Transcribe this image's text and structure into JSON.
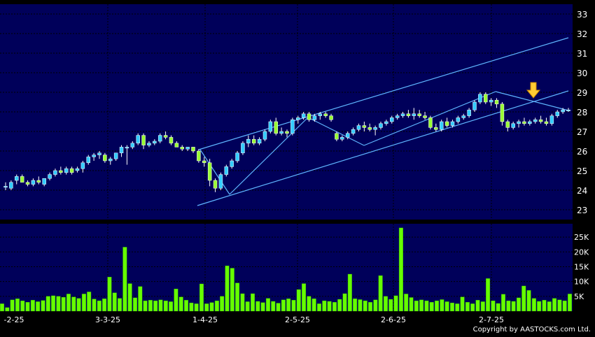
{
  "chart_data": [
    {
      "type": "candlestick",
      "yticks": [
        23,
        24,
        25,
        26,
        27,
        28,
        29,
        30,
        31,
        32,
        33
      ],
      "ylim": [
        22.5,
        33.5
      ],
      "ohlc": [
        [
          24.2,
          24.4,
          24.0,
          24.2
        ],
        [
          24.1,
          24.5,
          24.0,
          24.4
        ],
        [
          24.5,
          24.8,
          24.3,
          24.7
        ],
        [
          24.7,
          24.8,
          24.4,
          24.4
        ],
        [
          24.4,
          24.5,
          24.2,
          24.3
        ],
        [
          24.3,
          24.6,
          24.2,
          24.5
        ],
        [
          24.5,
          24.7,
          24.3,
          24.4
        ],
        [
          24.3,
          24.6,
          24.2,
          24.6
        ],
        [
          24.6,
          24.9,
          24.5,
          24.8
        ],
        [
          24.8,
          25.1,
          24.7,
          25.0
        ],
        [
          25.0,
          25.2,
          24.8,
          24.9
        ],
        [
          24.9,
          25.2,
          24.8,
          25.1
        ],
        [
          25.1,
          25.2,
          24.8,
          24.9
        ],
        [
          25.0,
          25.2,
          24.9,
          25.1
        ],
        [
          25.1,
          25.5,
          24.9,
          25.4
        ],
        [
          25.4,
          25.8,
          25.3,
          25.7
        ],
        [
          25.7,
          25.9,
          25.5,
          25.8
        ],
        [
          25.8,
          26.0,
          25.6,
          25.9
        ],
        [
          25.8,
          25.9,
          25.4,
          25.5
        ],
        [
          25.5,
          25.7,
          25.3,
          25.6
        ],
        [
          25.6,
          25.9,
          25.5,
          25.9
        ],
        [
          25.9,
          26.3,
          25.7,
          26.2
        ],
        [
          26.2,
          26.3,
          25.3,
          26.2
        ],
        [
          26.2,
          26.5,
          26.1,
          26.4
        ],
        [
          26.4,
          26.9,
          26.3,
          26.8
        ],
        [
          26.8,
          26.9,
          26.1,
          26.3
        ],
        [
          26.3,
          26.5,
          26.2,
          26.4
        ],
        [
          26.4,
          26.6,
          26.3,
          26.5
        ],
        [
          26.5,
          26.9,
          26.4,
          26.8
        ],
        [
          26.8,
          27.0,
          26.6,
          26.7
        ],
        [
          26.7,
          26.8,
          26.3,
          26.4
        ],
        [
          26.4,
          26.5,
          26.2,
          26.2
        ],
        [
          26.2,
          26.3,
          26.0,
          26.1
        ],
        [
          26.1,
          26.2,
          26.0,
          26.2
        ],
        [
          26.2,
          26.2,
          25.9,
          26.0
        ],
        [
          26.0,
          26.1,
          25.4,
          25.5
        ],
        [
          25.5,
          25.7,
          25.2,
          25.4
        ],
        [
          25.4,
          25.6,
          24.2,
          24.5
        ],
        [
          24.5,
          24.6,
          23.9,
          24.1
        ],
        [
          24.1,
          24.9,
          24.0,
          24.8
        ],
        [
          24.8,
          25.3,
          24.7,
          25.2
        ],
        [
          25.2,
          25.6,
          25.1,
          25.5
        ],
        [
          25.5,
          26.0,
          25.4,
          25.9
        ],
        [
          25.9,
          26.5,
          25.8,
          26.4
        ],
        [
          26.4,
          26.8,
          26.2,
          26.6
        ],
        [
          26.6,
          26.8,
          26.3,
          26.4
        ],
        [
          26.4,
          26.7,
          26.3,
          26.6
        ],
        [
          26.6,
          27.1,
          26.5,
          27.0
        ],
        [
          27.0,
          27.6,
          26.9,
          27.5
        ],
        [
          27.5,
          27.7,
          26.8,
          26.9
        ],
        [
          26.9,
          27.2,
          26.8,
          27.0
        ],
        [
          27.0,
          27.1,
          26.7,
          26.9
        ],
        [
          26.9,
          27.7,
          26.8,
          27.6
        ],
        [
          27.6,
          27.8,
          27.4,
          27.7
        ],
        [
          27.7,
          28.0,
          27.6,
          27.9
        ],
        [
          27.9,
          28.0,
          27.5,
          27.6
        ],
        [
          27.6,
          27.9,
          27.5,
          27.8
        ],
        [
          27.8,
          28.0,
          27.6,
          27.9
        ],
        [
          27.9,
          28.0,
          27.7,
          27.8
        ],
        [
          27.8,
          27.9,
          27.5,
          27.6
        ],
        [
          26.9,
          27.0,
          26.5,
          26.6
        ],
        [
          26.6,
          26.8,
          26.5,
          26.7
        ],
        [
          26.7,
          27.0,
          26.6,
          26.9
        ],
        [
          26.9,
          27.2,
          26.8,
          27.1
        ],
        [
          27.1,
          27.4,
          27.0,
          27.3
        ],
        [
          27.3,
          27.5,
          27.0,
          27.2
        ],
        [
          27.2,
          27.4,
          27.0,
          27.1
        ],
        [
          27.1,
          27.3,
          26.8,
          27.2
        ],
        [
          27.2,
          27.5,
          27.1,
          27.4
        ],
        [
          27.4,
          27.6,
          27.3,
          27.5
        ],
        [
          27.5,
          27.8,
          27.4,
          27.7
        ],
        [
          27.7,
          27.9,
          27.6,
          27.8
        ],
        [
          27.8,
          28.0,
          27.7,
          27.9
        ],
        [
          27.9,
          28.1,
          27.7,
          27.8
        ],
        [
          27.8,
          28.2,
          27.6,
          27.9
        ],
        [
          27.9,
          28.1,
          27.7,
          27.8
        ],
        [
          27.8,
          28.0,
          27.6,
          27.7
        ],
        [
          27.7,
          27.8,
          27.1,
          27.2
        ],
        [
          27.2,
          27.4,
          27.0,
          27.1
        ],
        [
          27.1,
          27.6,
          27.0,
          27.5
        ],
        [
          27.5,
          27.7,
          27.2,
          27.3
        ],
        [
          27.3,
          27.6,
          27.2,
          27.5
        ],
        [
          27.5,
          27.8,
          27.4,
          27.7
        ],
        [
          27.7,
          27.9,
          27.6,
          27.8
        ],
        [
          27.8,
          28.2,
          27.7,
          28.1
        ],
        [
          28.1,
          28.6,
          28.0,
          28.5
        ],
        [
          28.5,
          29.0,
          28.4,
          28.9
        ],
        [
          28.9,
          29.0,
          28.4,
          28.5
        ],
        [
          28.5,
          28.7,
          28.3,
          28.6
        ],
        [
          28.6,
          28.7,
          28.2,
          28.4
        ],
        [
          28.4,
          28.5,
          27.3,
          27.5
        ],
        [
          27.5,
          27.6,
          27.0,
          27.2
        ],
        [
          27.2,
          27.5,
          27.1,
          27.4
        ],
        [
          27.4,
          27.6,
          27.2,
          27.5
        ],
        [
          27.5,
          27.7,
          27.3,
          27.4
        ],
        [
          27.4,
          27.6,
          27.3,
          27.5
        ],
        [
          27.5,
          27.7,
          27.4,
          27.6
        ],
        [
          27.6,
          27.8,
          27.4,
          27.5
        ],
        [
          27.5,
          27.7,
          27.3,
          27.4
        ],
        [
          27.4,
          27.9,
          27.3,
          27.8
        ],
        [
          27.8,
          28.1,
          27.7,
          28.0
        ],
        [
          28.0,
          28.2,
          27.9,
          28.1
        ],
        [
          28.1,
          28.2,
          28.0,
          28.1
        ]
      ]
    },
    {
      "type": "bar",
      "yticks": [
        5000,
        10000,
        15000,
        20000,
        25000
      ],
      "ytick_labels": [
        "5K",
        "10K",
        "15K",
        "20K",
        "25K"
      ],
      "ylim": [
        0,
        29500
      ],
      "xtick_labels": [
        "-2-25",
        "3-3-25",
        "1-4-25",
        "2-5-25",
        "2-6-25",
        "2-7-25"
      ],
      "values": [
        2500,
        1200,
        3800,
        4200,
        3500,
        3000,
        3700,
        3200,
        3600,
        5000,
        5200,
        5000,
        4700,
        5800,
        4800,
        4300,
        5800,
        6500,
        4100,
        3500,
        4200,
        11500,
        6200,
        4300,
        21600,
        9300,
        4500,
        8300,
        3500,
        3700,
        3500,
        3800,
        3500,
        3200,
        7500,
        4800,
        3700,
        2800,
        2500,
        9200,
        2500,
        2900,
        3500,
        5000,
        15300,
        14500,
        9500,
        5900,
        3200,
        5900,
        3300,
        2900,
        4300,
        3300,
        2700,
        3800,
        4200,
        3700,
        7300,
        9300,
        5000,
        4200,
        2500,
        3500,
        3300,
        3000,
        4000,
        5900,
        12500,
        4200,
        3900,
        3500,
        3000,
        3800,
        12000,
        5000,
        4000,
        5200,
        28100,
        5800,
        4600,
        3500,
        3800,
        3500,
        3000,
        3500,
        3900,
        3200,
        2800,
        2500,
        4800,
        3000,
        2500,
        3700,
        3200,
        11000,
        3500,
        2600,
        5700,
        3500,
        3300,
        4500,
        8500,
        7000,
        4300,
        3300,
        3700,
        3200,
        4300,
        3800,
        3500,
        5800
      ]
    }
  ],
  "copyright": "Copyright by AASTOCKS.com Ltd."
}
